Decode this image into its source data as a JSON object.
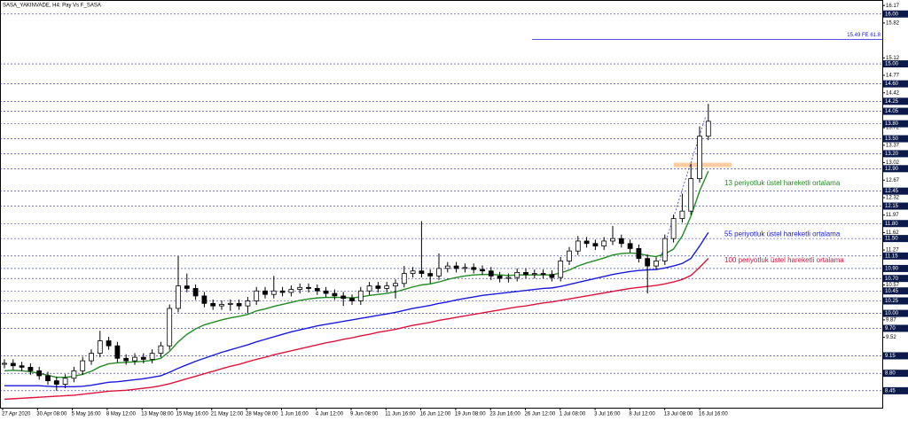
{
  "chart_data": {
    "type": "candlestick",
    "title": "SASA_YAKINVADE, H4: Pay Vs F_SASA",
    "open": [
      8.98,
      9.0,
      8.95,
      8.92,
      8.85,
      8.75,
      8.65,
      8.58,
      8.7,
      8.85,
      9.05,
      9.2,
      9.45,
      9.35,
      9.1,
      9.05,
      9.12,
      9.08,
      9.2,
      9.35,
      10.1,
      10.55,
      10.5,
      10.35,
      10.2,
      10.15,
      10.18,
      10.2,
      10.15,
      10.25,
      10.45,
      10.38,
      10.45,
      10.42,
      10.48,
      10.52,
      10.5,
      10.45,
      10.4,
      10.35,
      10.3,
      10.25,
      10.45,
      10.55,
      10.5,
      10.55,
      10.6,
      10.8,
      10.85,
      10.8,
      10.75,
      10.9,
      10.95,
      10.9,
      10.92,
      10.88,
      10.85,
      10.75,
      10.7,
      10.72,
      10.82,
      10.78,
      10.8,
      10.78,
      10.72,
      11.05,
      11.25,
      11.45,
      11.4,
      11.35,
      11.45,
      11.5,
      11.4,
      11.3,
      11.1,
      10.95,
      11.05,
      11.5,
      11.9,
      12.05,
      12.7,
      13.55
    ],
    "high": [
      9.08,
      9.08,
      9.03,
      9.0,
      8.93,
      8.83,
      8.73,
      8.78,
      8.93,
      9.13,
      9.28,
      9.65,
      9.53,
      9.43,
      9.18,
      9.2,
      9.2,
      9.28,
      9.43,
      10.18,
      11.15,
      10.8,
      10.58,
      10.43,
      10.28,
      10.26,
      10.28,
      10.28,
      10.33,
      10.53,
      10.53,
      10.75,
      10.53,
      10.56,
      10.6,
      10.6,
      10.58,
      10.53,
      10.48,
      10.43,
      10.38,
      10.53,
      10.63,
      10.63,
      10.63,
      10.68,
      10.95,
      10.93,
      11.85,
      10.88,
      11.2,
      11.03,
      11.03,
      11.0,
      11.0,
      10.96,
      10.93,
      10.83,
      10.8,
      10.9,
      10.9,
      10.88,
      10.88,
      10.86,
      11.13,
      11.33,
      11.55,
      11.53,
      11.48,
      11.53,
      11.75,
      11.58,
      11.48,
      11.38,
      11.18,
      11.13,
      11.58,
      11.98,
      12.4,
      13.0,
      13.75,
      14.2
    ],
    "low": [
      8.9,
      8.87,
      8.84,
      8.77,
      8.67,
      8.57,
      8.45,
      8.5,
      8.62,
      8.77,
      8.97,
      9.12,
      9.27,
      9.02,
      8.97,
      8.97,
      9.0,
      9.0,
      9.12,
      9.27,
      10.02,
      10.42,
      10.27,
      10.12,
      10.07,
      10.07,
      10.05,
      10.07,
      10.0,
      10.17,
      10.3,
      10.3,
      10.34,
      10.34,
      10.4,
      10.42,
      10.37,
      10.32,
      10.27,
      10.15,
      10.17,
      10.17,
      10.37,
      10.42,
      10.42,
      10.3,
      10.52,
      10.72,
      10.72,
      10.6,
      10.67,
      10.82,
      10.82,
      10.82,
      10.8,
      10.77,
      10.67,
      10.62,
      10.62,
      10.64,
      10.7,
      10.7,
      10.7,
      10.64,
      10.64,
      10.97,
      11.17,
      11.32,
      11.27,
      11.27,
      11.37,
      11.32,
      11.22,
      11.02,
      10.4,
      10.87,
      10.97,
      11.42,
      11.82,
      11.97,
      12.62,
      13.47
    ],
    "close": [
      9.0,
      8.95,
      8.92,
      8.85,
      8.75,
      8.65,
      8.58,
      8.7,
      8.85,
      9.05,
      9.2,
      9.45,
      9.35,
      9.1,
      9.05,
      9.12,
      9.08,
      9.2,
      9.35,
      10.1,
      10.55,
      10.5,
      10.35,
      10.2,
      10.15,
      10.18,
      10.2,
      10.15,
      10.25,
      10.45,
      10.38,
      10.45,
      10.42,
      10.48,
      10.52,
      10.5,
      10.45,
      10.4,
      10.35,
      10.3,
      10.25,
      10.45,
      10.55,
      10.5,
      10.55,
      10.6,
      10.8,
      10.85,
      10.8,
      10.75,
      10.9,
      10.95,
      10.9,
      10.92,
      10.88,
      10.85,
      10.75,
      10.7,
      10.72,
      10.82,
      10.78,
      10.8,
      10.78,
      10.72,
      11.05,
      11.25,
      11.45,
      11.4,
      11.35,
      11.45,
      11.5,
      11.4,
      11.3,
      11.1,
      10.95,
      11.05,
      11.5,
      11.9,
      12.05,
      12.7,
      13.55,
      13.85
    ],
    "series": [
      {
        "name": "13 periyotluk üstel hareketli ortalama",
        "color": "#228b22",
        "values": [
          8.85,
          8.86,
          8.85,
          8.83,
          8.8,
          8.76,
          8.72,
          8.72,
          8.74,
          8.78,
          8.84,
          8.93,
          8.99,
          9.01,
          9.02,
          9.03,
          9.04,
          9.06,
          9.1,
          9.24,
          9.43,
          9.58,
          9.69,
          9.77,
          9.82,
          9.87,
          9.91,
          9.94,
          9.98,
          10.05,
          10.09,
          10.14,
          10.18,
          10.22,
          10.26,
          10.29,
          10.31,
          10.32,
          10.32,
          10.32,
          10.31,
          10.33,
          10.36,
          10.38,
          10.4,
          10.43,
          10.48,
          10.53,
          10.57,
          10.59,
          10.63,
          10.68,
          10.72,
          10.75,
          10.77,
          10.78,
          10.78,
          10.77,
          10.76,
          10.77,
          10.77,
          10.77,
          10.77,
          10.77,
          10.81,
          10.87,
          10.95,
          11.01,
          11.06,
          11.11,
          11.17,
          11.2,
          11.21,
          11.2,
          11.16,
          11.14,
          11.19,
          11.29,
          11.55,
          11.95,
          12.45,
          12.85
        ]
      },
      {
        "name": "55 periyotluk üstel hareketli ortalama",
        "color": "#1a1adc",
        "values": [
          8.55,
          8.55,
          8.55,
          8.55,
          8.55,
          8.54,
          8.53,
          8.53,
          8.53,
          8.54,
          8.56,
          8.59,
          8.62,
          8.63,
          8.65,
          8.67,
          8.69,
          8.72,
          8.75,
          8.82,
          8.9,
          8.97,
          9.04,
          9.1,
          9.16,
          9.22,
          9.27,
          9.32,
          9.37,
          9.43,
          9.48,
          9.53,
          9.58,
          9.63,
          9.67,
          9.71,
          9.75,
          9.78,
          9.81,
          9.84,
          9.87,
          9.9,
          9.93,
          9.96,
          9.99,
          10.02,
          10.06,
          10.1,
          10.13,
          10.16,
          10.2,
          10.23,
          10.27,
          10.3,
          10.33,
          10.36,
          10.38,
          10.4,
          10.42,
          10.44,
          10.46,
          10.48,
          10.5,
          10.51,
          10.54,
          10.58,
          10.62,
          10.66,
          10.7,
          10.74,
          10.78,
          10.81,
          10.84,
          10.86,
          10.87,
          10.88,
          10.91,
          10.95,
          11.0,
          11.1,
          11.35,
          11.62
        ]
      },
      {
        "name": "100 periyotluk üstel hareketli ortalama",
        "color": "#dc143c",
        "values": [
          8.28,
          8.29,
          8.3,
          8.31,
          8.32,
          8.33,
          8.34,
          8.35,
          8.36,
          8.38,
          8.4,
          8.42,
          8.44,
          8.45,
          8.46,
          8.48,
          8.5,
          8.52,
          8.55,
          8.59,
          8.64,
          8.69,
          8.74,
          8.79,
          8.84,
          8.89,
          8.94,
          8.98,
          9.03,
          9.08,
          9.12,
          9.17,
          9.21,
          9.25,
          9.29,
          9.33,
          9.37,
          9.41,
          9.44,
          9.48,
          9.51,
          9.55,
          9.58,
          9.62,
          9.65,
          9.68,
          9.72,
          9.76,
          9.79,
          9.82,
          9.86,
          9.89,
          9.92,
          9.95,
          9.98,
          10.01,
          10.04,
          10.07,
          10.1,
          10.13,
          10.15,
          10.18,
          10.21,
          10.23,
          10.26,
          10.29,
          10.32,
          10.35,
          10.38,
          10.41,
          10.44,
          10.47,
          10.5,
          10.52,
          10.54,
          10.56,
          10.59,
          10.63,
          10.68,
          10.76,
          10.92,
          11.1
        ]
      }
    ],
    "ylim": [
      8.11,
      16.28
    ],
    "yticks": [
      16.17,
      15.82,
      15.12,
      14.77,
      14.42,
      13.72,
      13.37,
      13.02,
      12.67,
      12.32,
      11.97,
      11.62,
      11.27,
      10.57,
      9.87,
      9.52,
      8.47
    ],
    "levels": [
      {
        "value": 16,
        "label": "16.00"
      },
      {
        "value": 15,
        "label": "15.00"
      },
      {
        "value": 14.6,
        "label": "14.60"
      },
      {
        "value": 14.25,
        "label": "14.25"
      },
      {
        "value": 14.05,
        "label": "14.05"
      },
      {
        "value": 13.8,
        "label": "13.80"
      },
      {
        "value": 13.5,
        "label": "13.50"
      },
      {
        "value": 13.2,
        "label": "13.20"
      },
      {
        "value": 12.9,
        "label": "12.90"
      },
      {
        "value": 12.45,
        "label": "12.45"
      },
      {
        "value": 12.15,
        "label": "12.15"
      },
      {
        "value": 11.8,
        "label": "11.80"
      },
      {
        "value": 11.5,
        "label": "11.50"
      },
      {
        "value": 11.15,
        "label": "11.15"
      },
      {
        "value": 10.9,
        "label": "10.90"
      },
      {
        "value": 10.7,
        "label": "10.70"
      },
      {
        "value": 10.45,
        "label": "10.45"
      },
      {
        "value": 10.25,
        "label": "10.25"
      },
      {
        "value": 10,
        "label": "10.00"
      },
      {
        "value": 9.7,
        "label": "9.70"
      },
      {
        "value": 9.15,
        "label": "9.15"
      },
      {
        "value": 8.8,
        "label": "8.80"
      },
      {
        "value": 8.45,
        "label": "8.45"
      }
    ],
    "fibo_line": {
      "value": 15.49,
      "label": "15.49 FE 61.8"
    },
    "zone": [
      12.93,
      13.02
    ],
    "trend_line": [
      11.05,
      13.95
    ],
    "xtick_labels": [
      "27 Apr 2020",
      "30 Apr 08:00",
      "5 May 16:00",
      "8 May 12:00",
      "13 May 08:00",
      "15 May 16:00",
      "21 May 12:00",
      "28 May 08:00",
      "1 Jun 16:00",
      "4 Jun 12:00",
      "9 Jun 08:00",
      "11 Jun 16:00",
      "16 Jun 12:00",
      "19 Jun 08:00",
      "23 Jun 16:00",
      "26 Jun 12:00",
      "1 Jul 08:00",
      "3 Jul 16:00",
      "8 Jul 12:00",
      "13 Jul 08:00",
      "16 Jul 16:00"
    ]
  }
}
